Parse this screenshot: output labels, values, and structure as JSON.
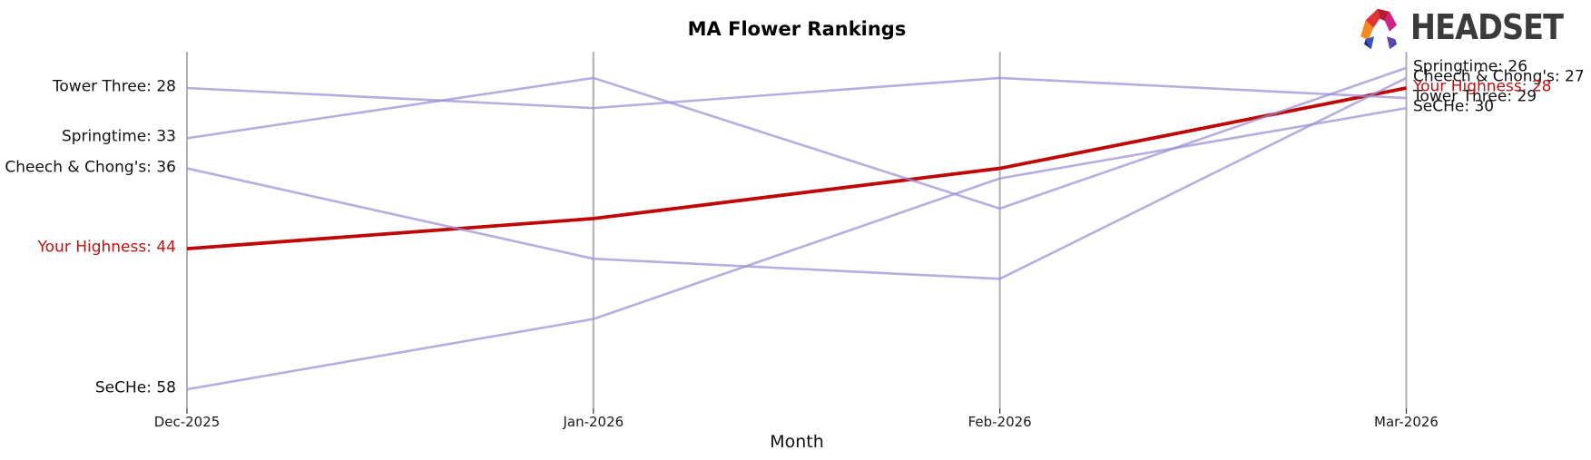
{
  "header": {
    "logo": {
      "text": "HEADSET",
      "icon": "headset-logo-icon"
    }
  },
  "chart_data": {
    "type": "line",
    "variant": "bump-ranking",
    "title": "MA Flower Rankings",
    "xlabel": "Month",
    "x": [
      "Dec-2025",
      "Jan-2026",
      "Feb-2026",
      "Mar-2026"
    ],
    "y_inverted": true,
    "ylim": [
      24,
      60
    ],
    "grid": "vertical-only",
    "legend_position": "inline-edge-labels",
    "label_format": "{name}: {value}",
    "series": [
      {
        "name": "Tower Three",
        "values": [
          28,
          30,
          27,
          29
        ],
        "color": "#9b8dd6",
        "highlight": false
      },
      {
        "name": "Springtime",
        "values": [
          33,
          27,
          40,
          26
        ],
        "color": "#9b8dd6",
        "highlight": false
      },
      {
        "name": "Cheech & Chong's",
        "values": [
          36,
          45,
          47,
          27
        ],
        "color": "#9b8dd6",
        "highlight": false
      },
      {
        "name": "Your Highness",
        "values": [
          44,
          41,
          36,
          28
        ],
        "color": "#c00606",
        "highlight": true
      },
      {
        "name": "SeCHe",
        "values": [
          58,
          51,
          37,
          30
        ],
        "color": "#9b8dd6",
        "highlight": false
      }
    ],
    "colors": {
      "line_default": "#9b8dd6",
      "line_highlight": "#c00606",
      "label_highlight": "#bf1212",
      "gridline": "#b0b0b0",
      "text": "#111111"
    }
  }
}
